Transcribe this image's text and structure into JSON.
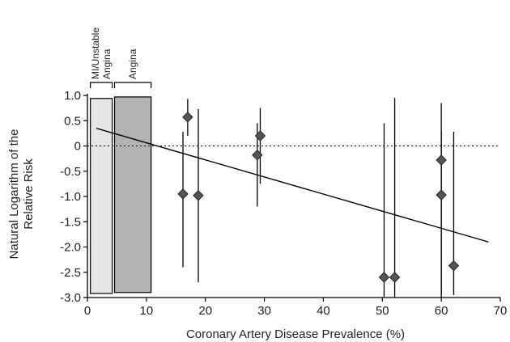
{
  "chart_data": {
    "type": "scatter",
    "title": "",
    "xlabel": "Coronary Artery Disease Prevalence (%)",
    "ylabel_lines": [
      "Natural Logarithm of the",
      "Relative Risk"
    ],
    "xlim": [
      0,
      70
    ],
    "ylim": [
      -3.0,
      1.0
    ],
    "x_ticks": [
      {
        "value": 0,
        "label": "0"
      },
      {
        "value": 10,
        "label": "10"
      },
      {
        "value": 20,
        "label": "20"
      },
      {
        "value": 30,
        "label": "30"
      },
      {
        "value": 40,
        "label": "40"
      },
      {
        "value": 50,
        "label": "50"
      },
      {
        "value": 60,
        "label": "60"
      },
      {
        "value": 70,
        "label": "70"
      }
    ],
    "y_ticks": [
      {
        "value": 1.0,
        "label": "1.0"
      },
      {
        "value": 0.5,
        "label": "0.5"
      },
      {
        "value": 0,
        "label": "0"
      },
      {
        "value": -0.5,
        "label": "-0.5"
      },
      {
        "value": -1.0,
        "label": "-1.0"
      },
      {
        "value": -1.5,
        "label": "-1.5"
      },
      {
        "value": -2.0,
        "label": "-2.0"
      },
      {
        "value": -2.5,
        "label": "-2.5"
      },
      {
        "value": -3.0,
        "label": "-3.0"
      }
    ],
    "regions": [
      {
        "label_lines": [
          "MI/Unstable",
          "Angina"
        ],
        "x_start": 0.5,
        "x_end": 4.2,
        "y_start": -2.92,
        "y_end": 0.94,
        "color": "#e6e6e6"
      },
      {
        "label_lines": [
          "Angina"
        ],
        "x_start": 4.6,
        "x_end": 10.8,
        "y_start": -2.9,
        "y_end": 0.97,
        "color": "#b3b3b3"
      }
    ],
    "points": [
      {
        "x": 16.2,
        "y": -0.95,
        "ci": [
          -2.4,
          0.28
        ]
      },
      {
        "x": 17.0,
        "y": 0.57,
        "ci": [
          0.2,
          0.93
        ]
      },
      {
        "x": 18.8,
        "y": -0.98,
        "ci": [
          -2.7,
          0.73
        ]
      },
      {
        "x": 28.8,
        "y": -0.18,
        "ci": [
          -1.2,
          0.45
        ]
      },
      {
        "x": 29.3,
        "y": 0.2,
        "ci": [
          -0.75,
          0.75
        ]
      },
      {
        "x": 50.3,
        "y": -2.6,
        "ci": [
          -3.0,
          0.45
        ]
      },
      {
        "x": 52.1,
        "y": -2.6,
        "ci": [
          -3.0,
          0.95
        ]
      },
      {
        "x": 60.0,
        "y": -0.28,
        "ci": [
          -2.95,
          0.3
        ]
      },
      {
        "x": 60.0,
        "y": -0.97,
        "ci": [
          -3.0,
          0.85
        ]
      },
      {
        "x": 62.1,
        "y": -2.37,
        "ci": [
          -2.95,
          0.28
        ]
      }
    ],
    "reference_line": {
      "y": 0,
      "style": "dotted"
    },
    "regression_line": {
      "x1": 1.5,
      "y1": 0.35,
      "x2": 68.0,
      "y2": -1.9
    },
    "marker": {
      "shape": "diamond",
      "color": "#555555"
    }
  }
}
